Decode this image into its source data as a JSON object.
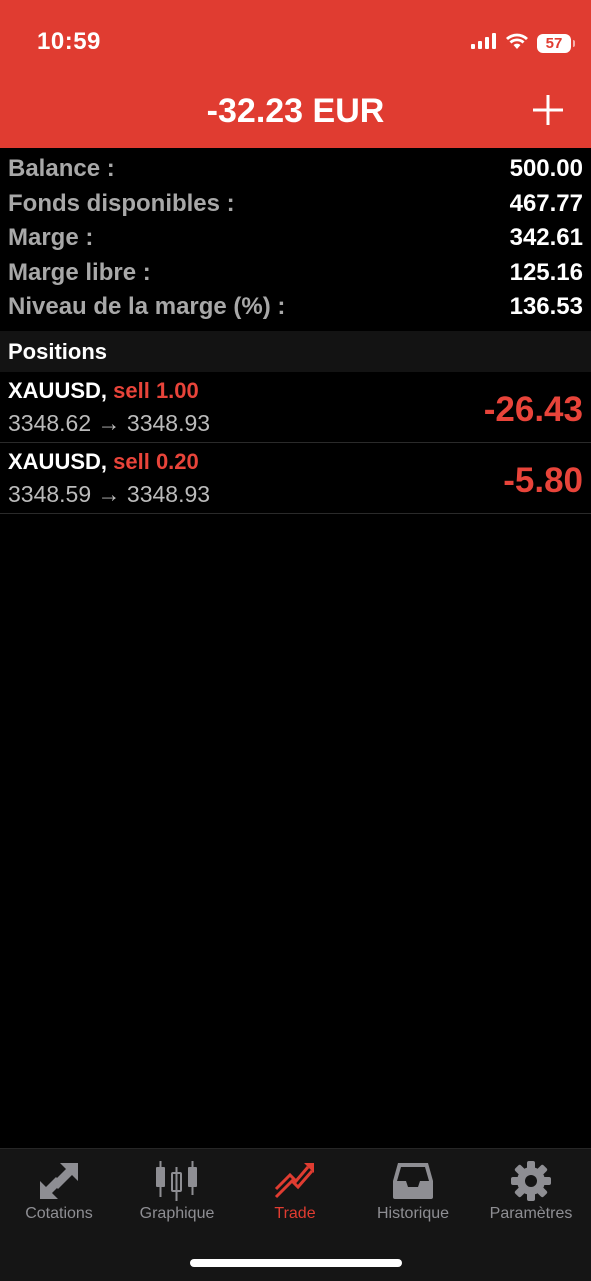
{
  "status": {
    "time": "10:59",
    "battery": "57"
  },
  "header": {
    "title": "-32.23 EUR"
  },
  "summary": [
    {
      "label": "Balance :",
      "value": "500.00"
    },
    {
      "label": "Fonds disponibles :",
      "value": "467.77"
    },
    {
      "label": "Marge :",
      "value": "342.61"
    },
    {
      "label": "Marge libre :",
      "value": "125.16"
    },
    {
      "label": "Niveau de la marge (%) :",
      "value": "136.53"
    }
  ],
  "positions_header": "Positions",
  "positions": [
    {
      "symbol": "XAUUSD,",
      "side": "sell 1.00",
      "prices": "3348.62 → 3348.93",
      "profit": "-26.43"
    },
    {
      "symbol": "XAUUSD,",
      "side": "sell 0.20",
      "prices": "3348.59 → 3348.93",
      "profit": "-5.80"
    }
  ],
  "tabs": [
    {
      "label": "Cotations",
      "icon": "quotes-arrows-icon",
      "active": false
    },
    {
      "label": "Graphique",
      "icon": "candlestick-chart-icon",
      "active": false
    },
    {
      "label": "Trade",
      "icon": "trade-trend-icon",
      "active": true
    },
    {
      "label": "Historique",
      "icon": "inbox-tray-icon",
      "active": false
    },
    {
      "label": "Paramètres",
      "icon": "gear-icon",
      "active": false
    }
  ],
  "colors": {
    "accent": "#e03c31",
    "loss": "#e8443a",
    "background": "#000000"
  }
}
